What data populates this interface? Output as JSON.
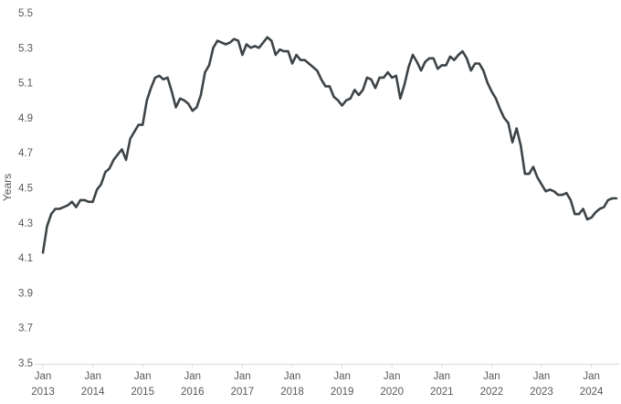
{
  "chart_data": {
    "type": "line",
    "title": "",
    "xlabel": "",
    "ylabel": "Years",
    "ylim": [
      3.5,
      5.5
    ],
    "yticks": [
      "3.5",
      "3.7",
      "3.9",
      "4.1",
      "4.3",
      "4.5",
      "4.7",
      "4.9",
      "5.1",
      "5.3",
      "5.5"
    ],
    "xticks": [
      [
        "Jan",
        "2013"
      ],
      [
        "Jan",
        "2014"
      ],
      [
        "Jan",
        "2015"
      ],
      [
        "Jan",
        "2016"
      ],
      [
        "Jan",
        "2017"
      ],
      [
        "Jan",
        "2018"
      ],
      [
        "Jan",
        "2019"
      ],
      [
        "Jan",
        "2020"
      ],
      [
        "Jan",
        "2021"
      ],
      [
        "Jan",
        "2022"
      ],
      [
        "Jan",
        "2023"
      ],
      [
        "Jan",
        "2024"
      ]
    ],
    "xlim": [
      "2013-01",
      "2024-07"
    ],
    "grid": false,
    "line_color": "#3d4347",
    "series": [
      {
        "points": [
          [
            "2013-01",
            4.13
          ],
          [
            "2013-02",
            4.28
          ],
          [
            "2013-03",
            4.35
          ],
          [
            "2013-04",
            4.38
          ],
          [
            "2013-05",
            4.38
          ],
          [
            "2013-06",
            4.39
          ],
          [
            "2013-07",
            4.4
          ],
          [
            "2013-08",
            4.42
          ],
          [
            "2013-09",
            4.39
          ],
          [
            "2013-10",
            4.43
          ],
          [
            "2013-11",
            4.43
          ],
          [
            "2013-12",
            4.42
          ],
          [
            "2014-01",
            4.42
          ],
          [
            "2014-02",
            4.49
          ],
          [
            "2014-03",
            4.52
          ],
          [
            "2014-04",
            4.59
          ],
          [
            "2014-05",
            4.61
          ],
          [
            "2014-06",
            4.66
          ],
          [
            "2014-07",
            4.69
          ],
          [
            "2014-08",
            4.72
          ],
          [
            "2014-09",
            4.66
          ],
          [
            "2014-10",
            4.78
          ],
          [
            "2014-11",
            4.82
          ],
          [
            "2014-12",
            4.86
          ],
          [
            "2015-01",
            4.86
          ],
          [
            "2015-02",
            5.0
          ],
          [
            "2015-03",
            5.07
          ],
          [
            "2015-04",
            5.13
          ],
          [
            "2015-05",
            5.14
          ],
          [
            "2015-06",
            5.12
          ],
          [
            "2015-07",
            5.13
          ],
          [
            "2015-08",
            5.05
          ],
          [
            "2015-09",
            4.96
          ],
          [
            "2015-10",
            5.01
          ],
          [
            "2015-11",
            5.0
          ],
          [
            "2015-12",
            4.98
          ],
          [
            "2016-01",
            4.94
          ],
          [
            "2016-02",
            4.96
          ],
          [
            "2016-03",
            5.03
          ],
          [
            "2016-04",
            5.16
          ],
          [
            "2016-05",
            5.2
          ],
          [
            "2016-06",
            5.3
          ],
          [
            "2016-07",
            5.34
          ],
          [
            "2016-08",
            5.33
          ],
          [
            "2016-09",
            5.32
          ],
          [
            "2016-10",
            5.33
          ],
          [
            "2016-11",
            5.35
          ],
          [
            "2016-12",
            5.34
          ],
          [
            "2017-01",
            5.26
          ],
          [
            "2017-02",
            5.32
          ],
          [
            "2017-03",
            5.3
          ],
          [
            "2017-04",
            5.31
          ],
          [
            "2017-05",
            5.3
          ],
          [
            "2017-06",
            5.33
          ],
          [
            "2017-07",
            5.36
          ],
          [
            "2017-08",
            5.34
          ],
          [
            "2017-09",
            5.26
          ],
          [
            "2017-10",
            5.29
          ],
          [
            "2017-11",
            5.28
          ],
          [
            "2017-12",
            5.28
          ],
          [
            "2018-01",
            5.21
          ],
          [
            "2018-02",
            5.26
          ],
          [
            "2018-03",
            5.23
          ],
          [
            "2018-04",
            5.23
          ],
          [
            "2018-05",
            5.21
          ],
          [
            "2018-06",
            5.19
          ],
          [
            "2018-07",
            5.17
          ],
          [
            "2018-08",
            5.12
          ],
          [
            "2018-09",
            5.08
          ],
          [
            "2018-10",
            5.08
          ],
          [
            "2018-11",
            5.02
          ],
          [
            "2018-12",
            5.0
          ],
          [
            "2019-01",
            4.97
          ],
          [
            "2019-02",
            5.0
          ],
          [
            "2019-03",
            5.01
          ],
          [
            "2019-04",
            5.06
          ],
          [
            "2019-05",
            5.03
          ],
          [
            "2019-06",
            5.06
          ],
          [
            "2019-07",
            5.13
          ],
          [
            "2019-08",
            5.12
          ],
          [
            "2019-09",
            5.07
          ],
          [
            "2019-10",
            5.13
          ],
          [
            "2019-11",
            5.13
          ],
          [
            "2019-12",
            5.16
          ],
          [
            "2020-01",
            5.13
          ],
          [
            "2020-02",
            5.14
          ],
          [
            "2020-03",
            5.01
          ],
          [
            "2020-04",
            5.09
          ],
          [
            "2020-05",
            5.19
          ],
          [
            "2020-06",
            5.26
          ],
          [
            "2020-07",
            5.22
          ],
          [
            "2020-08",
            5.17
          ],
          [
            "2020-09",
            5.22
          ],
          [
            "2020-10",
            5.24
          ],
          [
            "2020-11",
            5.24
          ],
          [
            "2020-12",
            5.18
          ],
          [
            "2021-01",
            5.2
          ],
          [
            "2021-02",
            5.2
          ],
          [
            "2021-03",
            5.25
          ],
          [
            "2021-04",
            5.23
          ],
          [
            "2021-05",
            5.26
          ],
          [
            "2021-06",
            5.28
          ],
          [
            "2021-07",
            5.24
          ],
          [
            "2021-08",
            5.17
          ],
          [
            "2021-09",
            5.21
          ],
          [
            "2021-10",
            5.21
          ],
          [
            "2021-11",
            5.17
          ],
          [
            "2021-12",
            5.1
          ],
          [
            "2022-01",
            5.05
          ],
          [
            "2022-02",
            5.01
          ],
          [
            "2022-03",
            4.95
          ],
          [
            "2022-04",
            4.9
          ],
          [
            "2022-05",
            4.87
          ],
          [
            "2022-06",
            4.76
          ],
          [
            "2022-07",
            4.84
          ],
          [
            "2022-08",
            4.74
          ],
          [
            "2022-09",
            4.58
          ],
          [
            "2022-10",
            4.58
          ],
          [
            "2022-11",
            4.62
          ],
          [
            "2022-12",
            4.56
          ],
          [
            "2023-01",
            4.52
          ],
          [
            "2023-02",
            4.48
          ],
          [
            "2023-03",
            4.49
          ],
          [
            "2023-04",
            4.48
          ],
          [
            "2023-05",
            4.46
          ],
          [
            "2023-06",
            4.46
          ],
          [
            "2023-07",
            4.47
          ],
          [
            "2023-08",
            4.43
          ],
          [
            "2023-09",
            4.35
          ],
          [
            "2023-10",
            4.35
          ],
          [
            "2023-11",
            4.38
          ],
          [
            "2023-12",
            4.32
          ],
          [
            "2024-01",
            4.33
          ],
          [
            "2024-02",
            4.36
          ],
          [
            "2024-03",
            4.38
          ],
          [
            "2024-04",
            4.39
          ],
          [
            "2024-05",
            4.43
          ],
          [
            "2024-06",
            4.44
          ],
          [
            "2024-07",
            4.44
          ]
        ]
      }
    ]
  }
}
